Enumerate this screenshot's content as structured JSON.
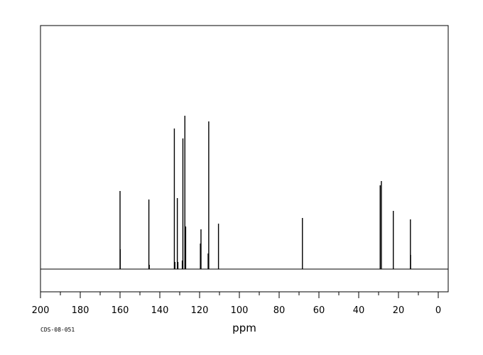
{
  "chart_data": {
    "type": "line",
    "xlabel": "ppm",
    "ylabel": "",
    "xlim": [
      200,
      -5
    ],
    "x_direction": "reversed",
    "grid": false,
    "legend": "none",
    "x_ticks": [
      200,
      180,
      160,
      140,
      120,
      100,
      80,
      60,
      40,
      20,
      0
    ],
    "x_minor_step": 10,
    "peaks": [
      {
        "ppm": 160.0,
        "intensity": 0.55
      },
      {
        "ppm": 159.9,
        "intensity": 0.14
      },
      {
        "ppm": 145.5,
        "intensity": 0.49
      },
      {
        "ppm": 145.3,
        "intensity": 0.03
      },
      {
        "ppm": 132.7,
        "intensity": 0.99
      },
      {
        "ppm": 132.4,
        "intensity": 0.05
      },
      {
        "ppm": 131.2,
        "intensity": 0.5
      },
      {
        "ppm": 130.9,
        "intensity": 0.05
      },
      {
        "ppm": 128.7,
        "intensity": 0.06
      },
      {
        "ppm": 128.4,
        "intensity": 0.92
      },
      {
        "ppm": 127.4,
        "intensity": 1.08
      },
      {
        "ppm": 127.0,
        "intensity": 0.3
      },
      {
        "ppm": 119.6,
        "intensity": 0.18
      },
      {
        "ppm": 119.3,
        "intensity": 0.28
      },
      {
        "ppm": 115.7,
        "intensity": 0.11
      },
      {
        "ppm": 115.4,
        "intensity": 1.04
      },
      {
        "ppm": 110.5,
        "intensity": 0.32
      },
      {
        "ppm": 68.3,
        "intensity": 0.36
      },
      {
        "ppm": 29.2,
        "intensity": 0.59
      },
      {
        "ppm": 28.6,
        "intensity": 0.62
      },
      {
        "ppm": 22.6,
        "intensity": 0.41
      },
      {
        "ppm": 14.0,
        "intensity": 0.35
      },
      {
        "ppm": 13.9,
        "intensity": 0.1
      }
    ]
  },
  "footer": {
    "code": "CDS-08-051"
  }
}
